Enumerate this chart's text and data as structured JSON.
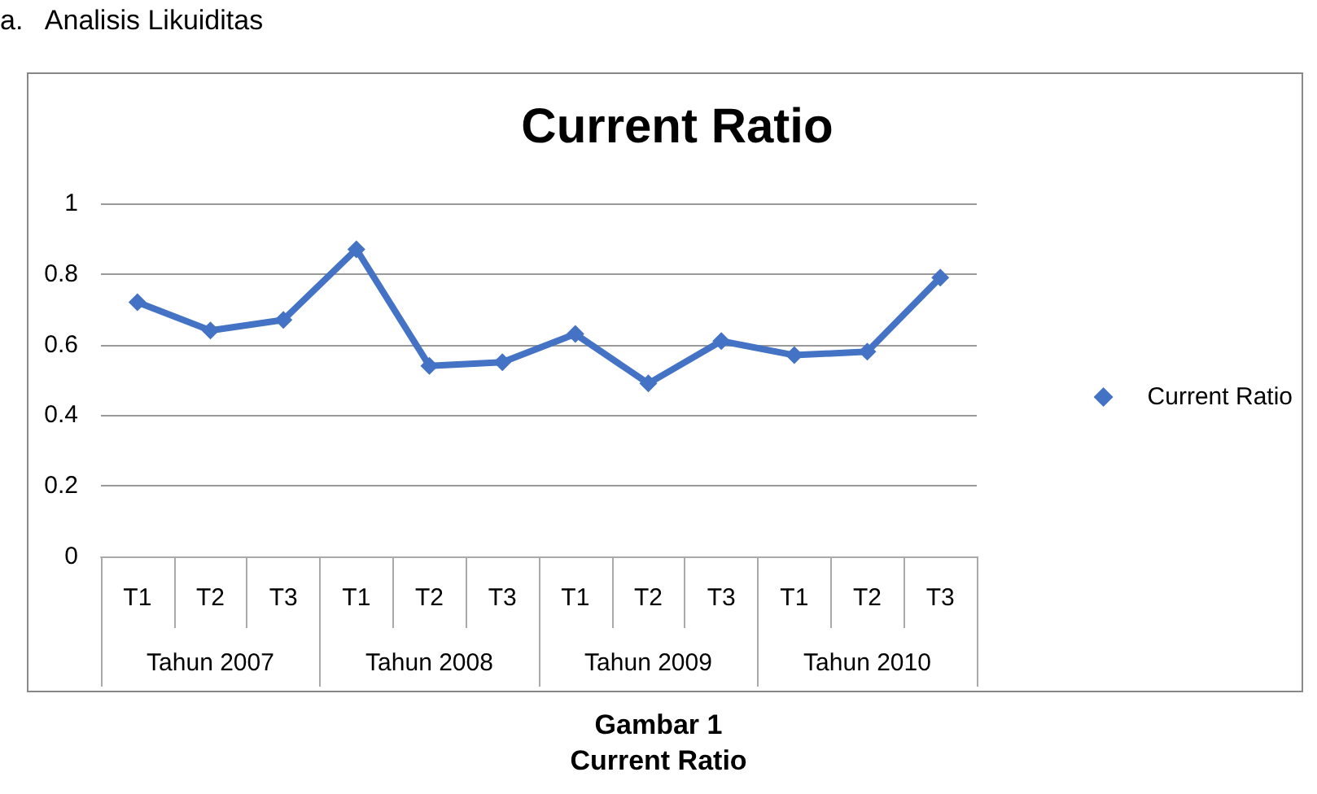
{
  "chart_data": {
    "type": "line",
    "title": "Current Ratio",
    "categories": [
      "T1",
      "T2",
      "T3",
      "T1",
      "T2",
      "T3",
      "T1",
      "T2",
      "T3",
      "T1",
      "T2",
      "T3"
    ],
    "series": [
      {
        "name": "Current Ratio",
        "color": "#4472c4",
        "values": [
          0.72,
          0.64,
          0.67,
          0.87,
          0.54,
          0.55,
          0.63,
          0.49,
          0.61,
          0.57,
          0.58,
          0.79
        ]
      }
    ],
    "ylim": [
      0,
      1
    ],
    "yticks": [
      0,
      0.2,
      0.4,
      0.6,
      0.8,
      1
    ],
    "grid": "y",
    "legend": "right",
    "marker": "diamond",
    "line_style": "solid",
    "annotations": [
      "a.   Analisis Likuiditas",
      "Tahun 2007",
      "Tahun 2008",
      "Tahun 2009",
      "Tahun 2010",
      "Gambar 1",
      "Current Ratio"
    ]
  }
}
